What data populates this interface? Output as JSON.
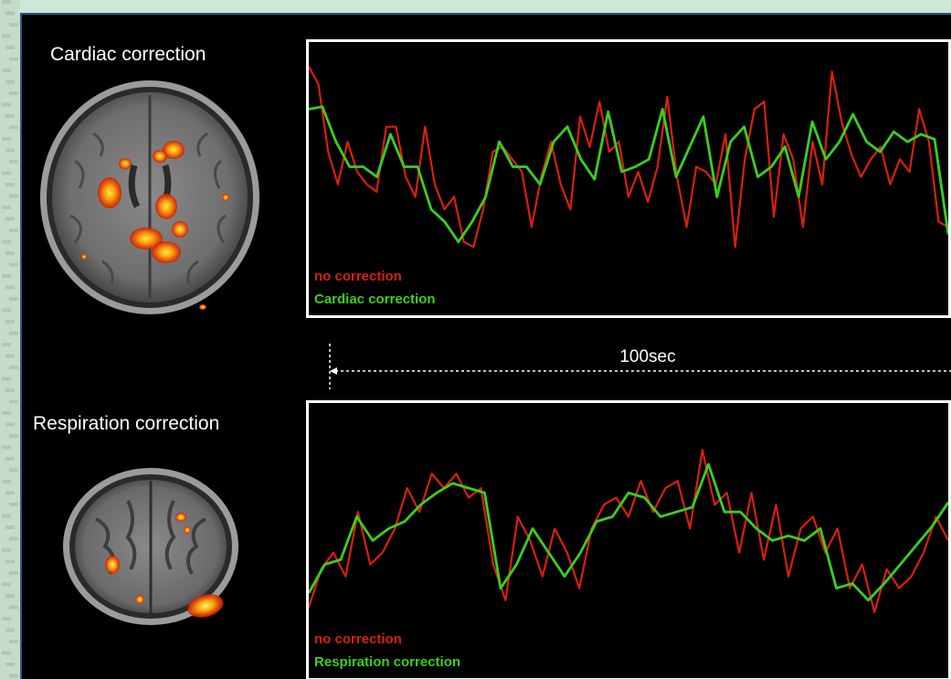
{
  "panels": {
    "top": {
      "caption": "Cardiac correction"
    },
    "bottom": {
      "caption": "Respiration correction"
    }
  },
  "scale_bar": {
    "label": "100sec"
  },
  "colors": {
    "no_correction": "#d9200e",
    "corrected": "#3ccf1e",
    "frame": "#ffffff",
    "background": "#000000"
  },
  "chart_data": [
    {
      "type": "line",
      "title": "",
      "xlabel": "",
      "ylabel": "",
      "grid": false,
      "legend": "bottom-left",
      "ylim": [
        0,
        1
      ],
      "series": [
        {
          "name": "no correction",
          "color": "#d9200e",
          "values": [
            0.92,
            0.85,
            0.58,
            0.45,
            0.62,
            0.5,
            0.45,
            0.42,
            0.68,
            0.68,
            0.48,
            0.4,
            0.68,
            0.45,
            0.35,
            0.4,
            0.22,
            0.2,
            0.35,
            0.58,
            0.6,
            0.55,
            0.5,
            0.28,
            0.48,
            0.62,
            0.45,
            0.35,
            0.72,
            0.6,
            0.78,
            0.58,
            0.62,
            0.4,
            0.5,
            0.38,
            0.52,
            0.8,
            0.48,
            0.28,
            0.52,
            0.5,
            0.45,
            0.65,
            0.2,
            0.55,
            0.75,
            0.78,
            0.32,
            0.65,
            0.55,
            0.28,
            0.62,
            0.45,
            0.9,
            0.7,
            0.57,
            0.48,
            0.55,
            0.6,
            0.45,
            0.55,
            0.5,
            0.75,
            0.62,
            0.3,
            0.28
          ]
        },
        {
          "name": "Cardiac correction",
          "color": "#3ccf1e",
          "values": [
            0.75,
            0.76,
            0.62,
            0.52,
            0.52,
            0.48,
            0.65,
            0.52,
            0.52,
            0.35,
            0.3,
            0.22,
            0.3,
            0.4,
            0.62,
            0.52,
            0.52,
            0.45,
            0.62,
            0.68,
            0.55,
            0.47,
            0.74,
            0.5,
            0.52,
            0.55,
            0.75,
            0.48,
            0.6,
            0.72,
            0.4,
            0.62,
            0.68,
            0.48,
            0.52,
            0.6,
            0.4,
            0.7,
            0.55,
            0.62,
            0.73,
            0.62,
            0.58,
            0.66,
            0.62,
            0.65,
            0.63,
            0.25
          ]
        }
      ]
    },
    {
      "type": "line",
      "title": "",
      "xlabel": "",
      "ylabel": "",
      "grid": false,
      "legend": "bottom-left",
      "ylim": [
        0,
        1
      ],
      "series": [
        {
          "name": "no correction",
          "color": "#d9200e",
          "values": [
            0.22,
            0.38,
            0.45,
            0.35,
            0.62,
            0.4,
            0.45,
            0.55,
            0.72,
            0.62,
            0.78,
            0.72,
            0.78,
            0.68,
            0.72,
            0.4,
            0.25,
            0.6,
            0.5,
            0.35,
            0.55,
            0.45,
            0.3,
            0.55,
            0.65,
            0.68,
            0.6,
            0.75,
            0.62,
            0.72,
            0.75,
            0.55,
            0.88,
            0.65,
            0.7,
            0.45,
            0.7,
            0.42,
            0.65,
            0.35,
            0.55,
            0.6,
            0.45,
            0.55,
            0.3,
            0.4,
            0.2,
            0.38,
            0.3,
            0.35,
            0.45,
            0.6,
            0.5
          ]
        },
        {
          "name": "Respiration correction",
          "color": "#3ccf1e",
          "values": [
            0.28,
            0.4,
            0.42,
            0.6,
            0.5,
            0.55,
            0.58,
            0.65,
            0.7,
            0.74,
            0.72,
            0.7,
            0.3,
            0.4,
            0.55,
            0.45,
            0.35,
            0.45,
            0.58,
            0.6,
            0.7,
            0.68,
            0.6,
            0.62,
            0.64,
            0.82,
            0.62,
            0.62,
            0.55,
            0.5,
            0.52,
            0.5,
            0.55,
            0.3,
            0.32,
            0.25,
            0.32,
            0.4,
            0.48,
            0.56,
            0.66
          ]
        }
      ]
    }
  ]
}
